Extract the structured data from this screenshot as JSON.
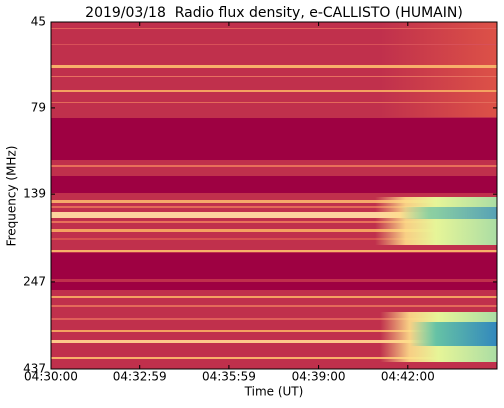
{
  "chart_data": {
    "type": "spectrogram",
    "title": "2019/03/18  Radio flux density, e-CALLISTO (HUMAIN)",
    "xlabel": "Time (UT)",
    "ylabel": "Frequency (MHz)",
    "xlim": [
      "04:30:00",
      "04:45:00"
    ],
    "xticks": [
      "04:30:00",
      "04:32:59",
      "04:35:59",
      "04:39:00",
      "04:42:00"
    ],
    "ylim": [
      45,
      437
    ],
    "y_inverted": true,
    "log_y": true,
    "yticks": [
      45,
      79,
      139,
      247,
      437
    ]
  }
}
